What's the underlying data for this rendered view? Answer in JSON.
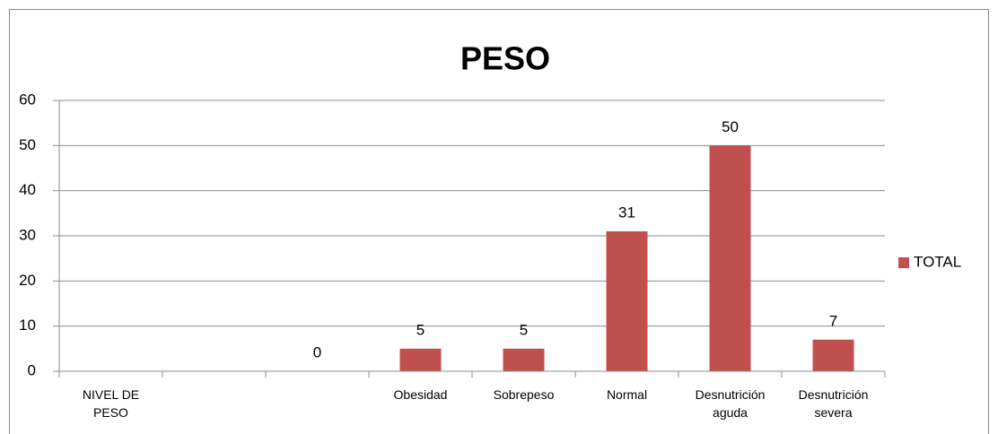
{
  "chart_data": {
    "type": "bar",
    "title": "PESO",
    "categories": [
      "NIVEL DE PESO",
      null,
      null,
      "Obesidad",
      "Sobrepeso",
      "Normal",
      "Desnutrición aguda",
      "Desnutrición severa"
    ],
    "series": [
      {
        "name": "TOTAL",
        "color": "#c0504d",
        "values": [
          null,
          null,
          0,
          5,
          5,
          31,
          50,
          7
        ]
      }
    ],
    "ylim": [
      0,
      60
    ],
    "yticks": [
      0,
      10,
      20,
      30,
      40,
      50,
      60
    ],
    "grid": true,
    "legend": "right"
  }
}
